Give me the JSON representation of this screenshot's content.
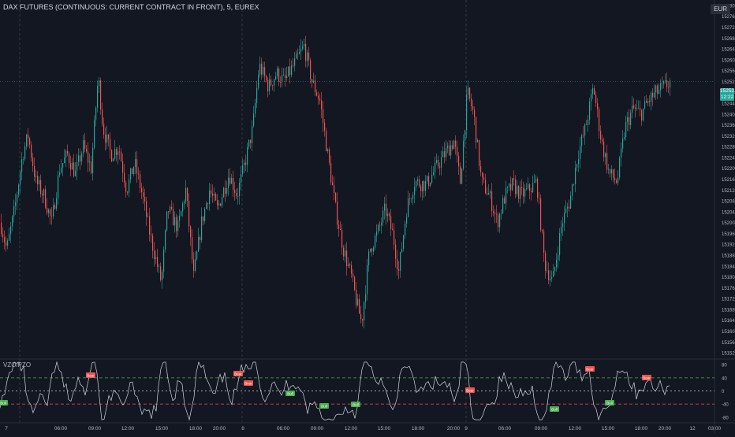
{
  "chart_data": [
    {
      "type": "candlestick",
      "title": "DAX FUTURES (CONTINUOUS: CURRENT CONTRACT IN FRONT), 5, EUREX",
      "currency": "EUR",
      "y_ticks": [
        15152,
        15156,
        15160,
        15164,
        15168,
        15172,
        15176,
        15180,
        15184,
        15188,
        15192,
        15196,
        15200,
        15204,
        15208,
        15212,
        15216,
        15220,
        15224,
        15228,
        15232,
        15236,
        15240,
        15244,
        15248,
        15252,
        15256,
        15260,
        15264,
        15268,
        15272,
        15276,
        15280
      ],
      "ylim": [
        15150,
        15282
      ],
      "last_price": "15252.0",
      "last_price_sub": "12:22",
      "x_labels": [
        "7",
        "06:00",
        "09:00",
        "12:00",
        "15:00",
        "18:00",
        "20:00",
        "8",
        "06:00",
        "09:00",
        "12:00",
        "15:00",
        "18:00",
        "20:00",
        "9",
        "06:00",
        "09:00",
        "12:00",
        "15:00",
        "18:00",
        "20:00",
        "12",
        "03:00"
      ],
      "close_path": [
        {
          "t": 0,
          "v": 15200
        },
        {
          "t": 8,
          "v": 15190
        },
        {
          "t": 18,
          "v": 15205
        },
        {
          "t": 28,
          "v": 15225
        },
        {
          "t": 35,
          "v": 15232
        },
        {
          "t": 45,
          "v": 15215
        },
        {
          "t": 55,
          "v": 15210
        },
        {
          "t": 65,
          "v": 15200
        },
        {
          "t": 75,
          "v": 15220
        },
        {
          "t": 85,
          "v": 15225
        },
        {
          "t": 95,
          "v": 15218
        },
        {
          "t": 105,
          "v": 15228
        },
        {
          "t": 115,
          "v": 15220
        },
        {
          "t": 124,
          "v": 15254
        },
        {
          "t": 130,
          "v": 15235
        },
        {
          "t": 140,
          "v": 15225
        },
        {
          "t": 150,
          "v": 15228
        },
        {
          "t": 160,
          "v": 15212
        },
        {
          "t": 170,
          "v": 15222
        },
        {
          "t": 180,
          "v": 15210
        },
        {
          "t": 190,
          "v": 15195
        },
        {
          "t": 204,
          "v": 15178
        },
        {
          "t": 212,
          "v": 15205
        },
        {
          "t": 225,
          "v": 15198
        },
        {
          "t": 235,
          "v": 15212
        },
        {
          "t": 245,
          "v": 15180
        },
        {
          "t": 255,
          "v": 15200
        },
        {
          "t": 265,
          "v": 15212
        },
        {
          "t": 275,
          "v": 15205
        },
        {
          "t": 290,
          "v": 15218
        },
        {
          "t": 300,
          "v": 15210
        },
        {
          "t": 310,
          "v": 15222
        },
        {
          "t": 320,
          "v": 15235
        },
        {
          "t": 328,
          "v": 15258
        },
        {
          "t": 340,
          "v": 15250
        },
        {
          "t": 350,
          "v": 15255
        },
        {
          "t": 360,
          "v": 15252
        },
        {
          "t": 372,
          "v": 15258
        },
        {
          "t": 385,
          "v": 15265
        },
        {
          "t": 395,
          "v": 15252
        },
        {
          "t": 405,
          "v": 15245
        },
        {
          "t": 415,
          "v": 15225
        },
        {
          "t": 425,
          "v": 15205
        },
        {
          "t": 435,
          "v": 15190
        },
        {
          "t": 445,
          "v": 15180
        },
        {
          "t": 452,
          "v": 15170
        },
        {
          "t": 458,
          "v": 15163
        },
        {
          "t": 468,
          "v": 15190
        },
        {
          "t": 478,
          "v": 15196
        },
        {
          "t": 488,
          "v": 15205
        },
        {
          "t": 498,
          "v": 15195
        },
        {
          "t": 505,
          "v": 15182
        },
        {
          "t": 515,
          "v": 15205
        },
        {
          "t": 525,
          "v": 15215
        },
        {
          "t": 540,
          "v": 15214
        },
        {
          "t": 552,
          "v": 15220
        },
        {
          "t": 565,
          "v": 15226
        },
        {
          "t": 575,
          "v": 15230
        },
        {
          "t": 583,
          "v": 15215
        },
        {
          "t": 592,
          "v": 15248
        },
        {
          "t": 600,
          "v": 15240
        },
        {
          "t": 610,
          "v": 15215
        },
        {
          "t": 620,
          "v": 15210
        },
        {
          "t": 630,
          "v": 15200
        },
        {
          "t": 640,
          "v": 15210
        },
        {
          "t": 650,
          "v": 15214
        },
        {
          "t": 660,
          "v": 15210
        },
        {
          "t": 670,
          "v": 15212
        },
        {
          "t": 680,
          "v": 15215
        },
        {
          "t": 690,
          "v": 15185
        },
        {
          "t": 700,
          "v": 15178
        },
        {
          "t": 712,
          "v": 15200
        },
        {
          "t": 722,
          "v": 15208
        },
        {
          "t": 732,
          "v": 15225
        },
        {
          "t": 742,
          "v": 15235
        },
        {
          "t": 752,
          "v": 15250
        },
        {
          "t": 762,
          "v": 15230
        },
        {
          "t": 772,
          "v": 15218
        },
        {
          "t": 782,
          "v": 15215
        },
        {
          "t": 792,
          "v": 15235
        },
        {
          "t": 802,
          "v": 15242
        },
        {
          "t": 812,
          "v": 15240
        },
        {
          "t": 822,
          "v": 15245
        },
        {
          "t": 832,
          "v": 15248
        },
        {
          "t": 842,
          "v": 15250
        },
        {
          "t": 850,
          "v": 15252
        }
      ]
    },
    {
      "type": "line",
      "title": "VZO/PZO",
      "y_ticks": [
        80,
        40,
        0,
        -40,
        -80
      ],
      "ylim": [
        -95,
        95
      ],
      "levels": [
        {
          "v": 40,
          "color": "#4caf50"
        },
        {
          "v": 0,
          "color": "#d1d4dc"
        },
        {
          "v": -40,
          "color": "#ef5350"
        }
      ],
      "signals": [
        {
          "label": "Bull",
          "type": "bull"
        },
        {
          "label": "Bear",
          "type": "bear"
        },
        {
          "label": "Bear",
          "type": "bear"
        },
        {
          "label": "Bear",
          "type": "bear"
        },
        {
          "label": "Bull",
          "type": "bull"
        },
        {
          "label": "Bull",
          "type": "bull"
        },
        {
          "label": "Bull",
          "type": "bull"
        },
        {
          "label": "Bear",
          "type": "bear"
        },
        {
          "label": "Bull",
          "type": "bull"
        },
        {
          "label": "Bear",
          "type": "bear"
        },
        {
          "label": "Bull",
          "type": "bull"
        },
        {
          "label": "Bear",
          "type": "bear"
        }
      ]
    }
  ],
  "colors": {
    "background": "#131722",
    "up": "#26a69a",
    "down": "#ef5350",
    "grid": "#1e222d",
    "oscillator": "#d1d4dc",
    "crosshair": "#758696"
  }
}
